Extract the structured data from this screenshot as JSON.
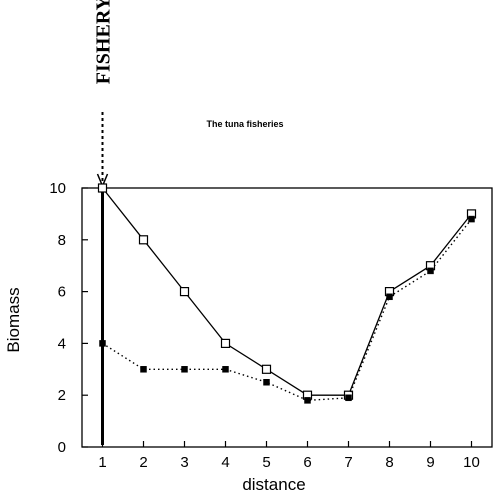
{
  "chart_data": {
    "type": "line",
    "title": "The tuna fisheries",
    "xlabel": "distance",
    "ylabel": "Biomass",
    "xlim": [
      0.5,
      10.5
    ],
    "ylim": [
      0,
      10
    ],
    "xticks": [
      1,
      2,
      3,
      4,
      5,
      6,
      7,
      8,
      9,
      10
    ],
    "yticks": [
      0,
      2,
      4,
      6,
      8,
      10
    ],
    "grid": false,
    "annotation": {
      "text": "FISHERY",
      "x": 1
    },
    "series": [
      {
        "marker": "open-square",
        "line": "solid",
        "x": [
          1,
          2,
          3,
          4,
          5,
          6,
          7,
          8,
          9,
          10
        ],
        "values": [
          10,
          8,
          6,
          4,
          3,
          2,
          2,
          6,
          7,
          9
        ]
      },
      {
        "marker": "filled-square",
        "line": "dotted",
        "x": [
          1,
          2,
          3,
          4,
          5,
          6,
          7,
          8,
          9,
          10
        ],
        "values": [
          4,
          3,
          3,
          3,
          2.5,
          1.8,
          1.9,
          5.8,
          6.8,
          8.8
        ]
      }
    ]
  }
}
